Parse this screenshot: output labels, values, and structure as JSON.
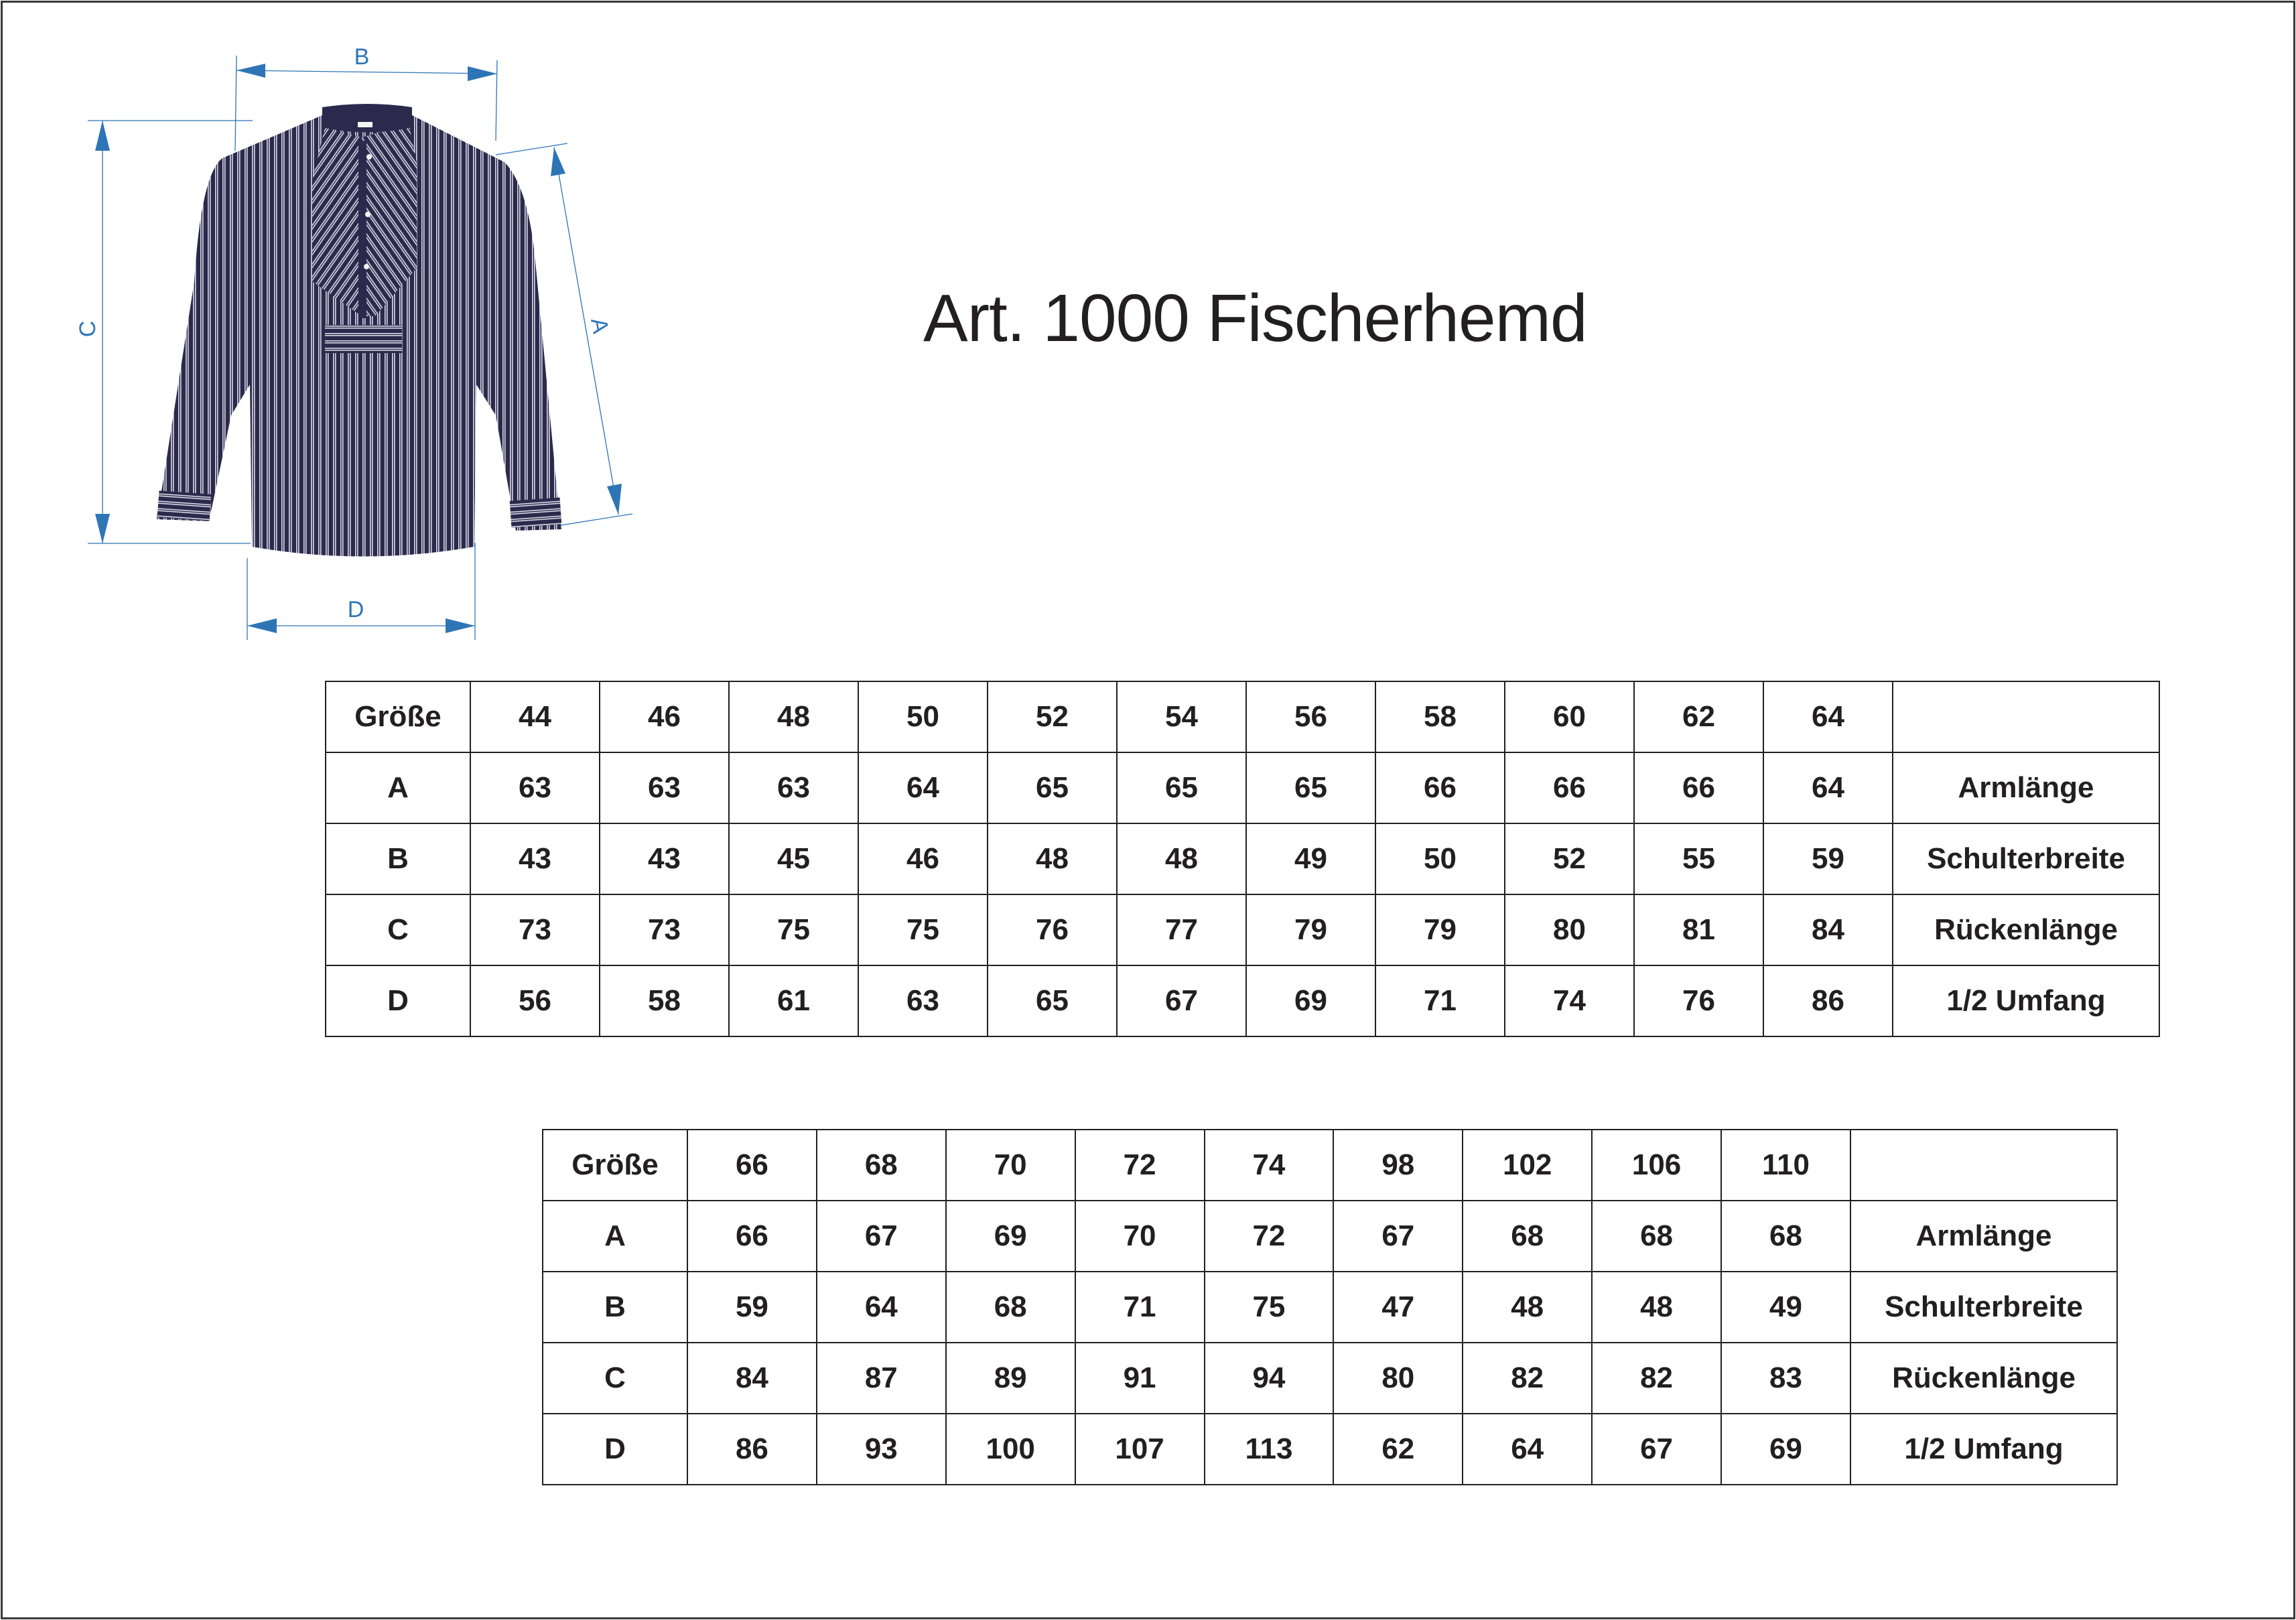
{
  "title": "Art. 1000 Fischerhemd",
  "diagram": {
    "labels": {
      "A": "A",
      "B": "B",
      "C": "C",
      "D": "D"
    },
    "colors": {
      "dimension": "#2e75b6",
      "shirt": "#2b2a4c",
      "stripe": "#d9d9e6"
    }
  },
  "tables": [
    {
      "header": [
        "Größe",
        "44",
        "46",
        "48",
        "50",
        "52",
        "54",
        "56",
        "58",
        "60",
        "62",
        "64",
        ""
      ],
      "rows": [
        [
          "A",
          "63",
          "63",
          "63",
          "64",
          "65",
          "65",
          "65",
          "66",
          "66",
          "66",
          "64",
          "Armlänge"
        ],
        [
          "B",
          "43",
          "43",
          "45",
          "46",
          "48",
          "48",
          "49",
          "50",
          "52",
          "55",
          "59",
          "Schulterbreite"
        ],
        [
          "C",
          "73",
          "73",
          "75",
          "75",
          "76",
          "77",
          "79",
          "79",
          "80",
          "81",
          "84",
          "Rückenlänge"
        ],
        [
          "D",
          "56",
          "58",
          "61",
          "63",
          "65",
          "67",
          "69",
          "71",
          "74",
          "76",
          "86",
          "1/2 Umfang"
        ]
      ]
    },
    {
      "header": [
        "Größe",
        "66",
        "68",
        "70",
        "72",
        "74",
        "98",
        "102",
        "106",
        "110",
        ""
      ],
      "rows": [
        [
          "A",
          "66",
          "67",
          "69",
          "70",
          "72",
          "67",
          "68",
          "68",
          "68",
          "Armlänge"
        ],
        [
          "B",
          "59",
          "64",
          "68",
          "71",
          "75",
          "47",
          "48",
          "48",
          "49",
          "Schulterbreite"
        ],
        [
          "C",
          "84",
          "87",
          "89",
          "91",
          "94",
          "80",
          "82",
          "82",
          "83",
          "Rückenlänge"
        ],
        [
          "D",
          "86",
          "93",
          "100",
          "107",
          "113",
          "62",
          "64",
          "67",
          "69",
          "1/2 Umfang"
        ]
      ]
    }
  ]
}
